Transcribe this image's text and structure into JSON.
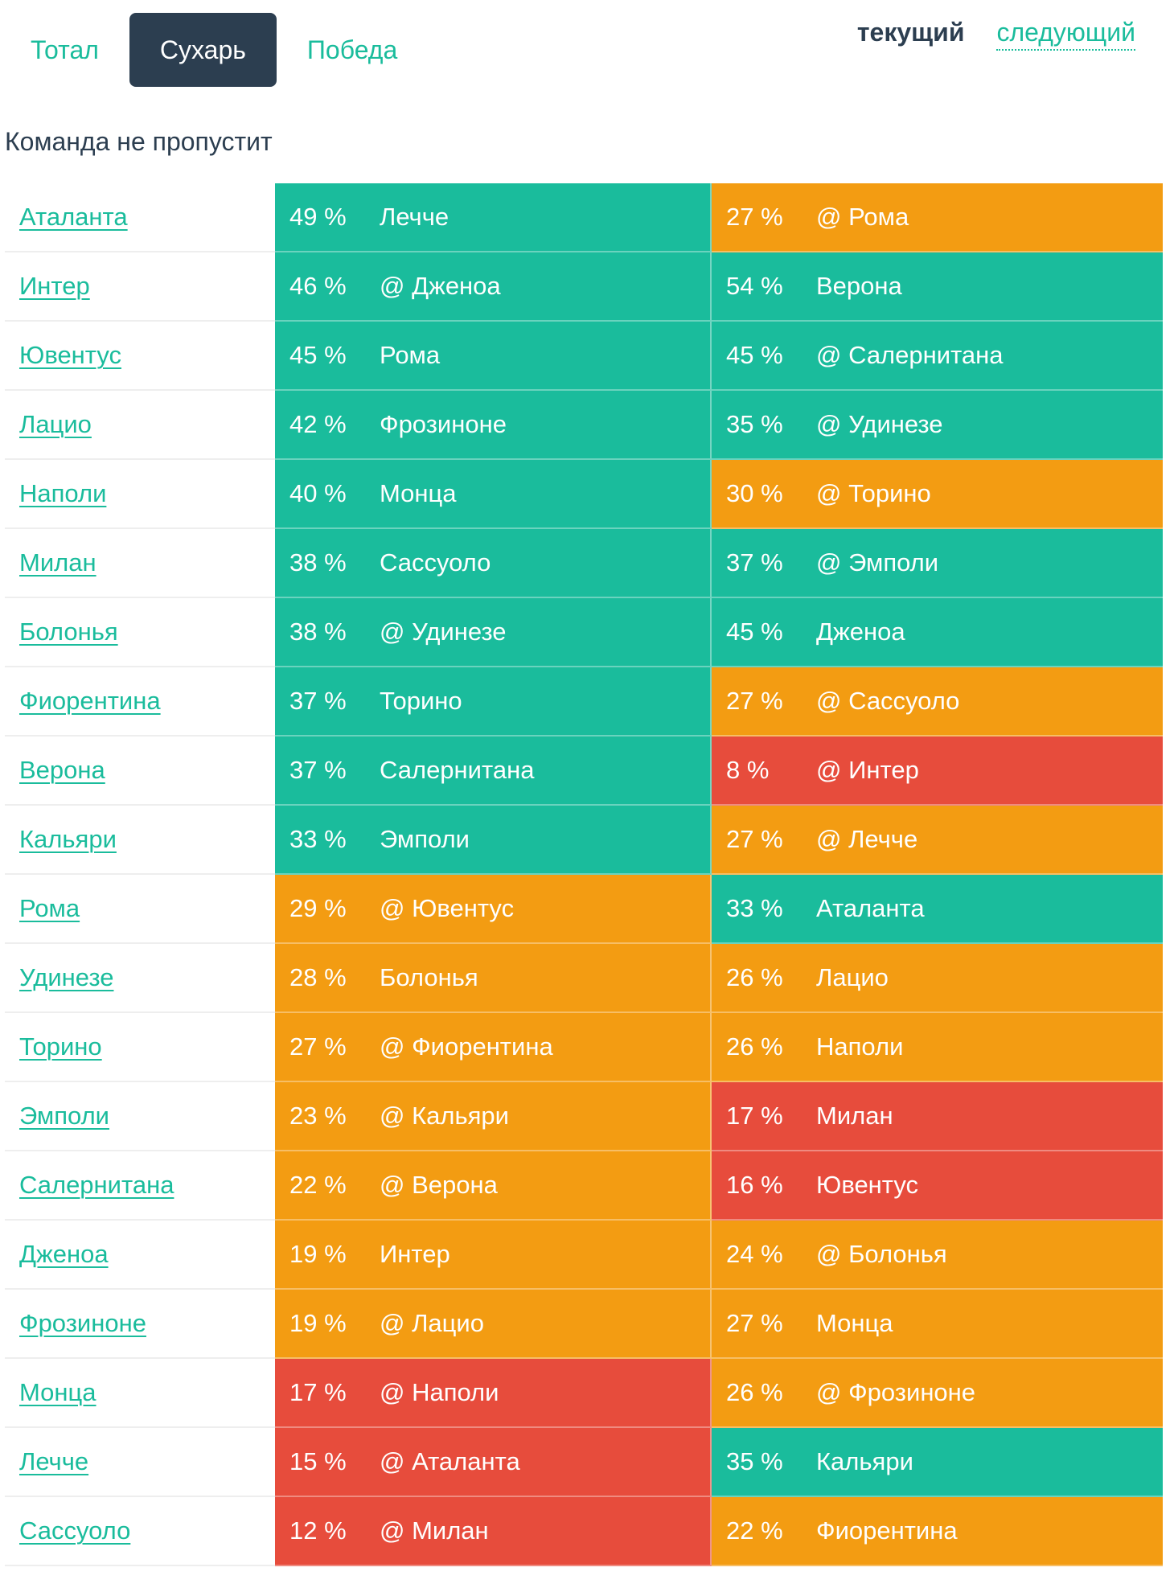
{
  "tabs": [
    {
      "label": "Тотал",
      "active": false
    },
    {
      "label": "Сухарь",
      "active": true
    },
    {
      "label": "Победа",
      "active": false
    }
  ],
  "round_switch": {
    "current": "текущий",
    "next": "следующий"
  },
  "subtitle": "Команда не пропустит",
  "colors": {
    "green": "#1abc9c",
    "orange": "#f39c12",
    "red": "#e74c3c",
    "dark": "#2c3e50"
  },
  "rows": [
    {
      "team": "Аталанта",
      "m1": {
        "pct": "49 %",
        "opp": "Лечче",
        "color": "green"
      },
      "m2": {
        "pct": "27 %",
        "opp": "@ Рома",
        "color": "orange"
      }
    },
    {
      "team": "Интер",
      "m1": {
        "pct": "46 %",
        "opp": "@ Дженоа",
        "color": "green"
      },
      "m2": {
        "pct": "54 %",
        "opp": "Верона",
        "color": "green"
      }
    },
    {
      "team": "Ювентус",
      "m1": {
        "pct": "45 %",
        "opp": "Рома",
        "color": "green"
      },
      "m2": {
        "pct": "45 %",
        "opp": "@ Салернитана",
        "color": "green"
      }
    },
    {
      "team": "Лацио",
      "m1": {
        "pct": "42 %",
        "opp": "Фрозиноне",
        "color": "green"
      },
      "m2": {
        "pct": "35 %",
        "opp": "@ Удинезе",
        "color": "green"
      }
    },
    {
      "team": "Наполи",
      "m1": {
        "pct": "40 %",
        "opp": "Монца",
        "color": "green"
      },
      "m2": {
        "pct": "30 %",
        "opp": "@ Торино",
        "color": "orange"
      }
    },
    {
      "team": "Милан",
      "m1": {
        "pct": "38 %",
        "opp": "Сассуоло",
        "color": "green"
      },
      "m2": {
        "pct": "37 %",
        "opp": "@ Эмполи",
        "color": "green"
      }
    },
    {
      "team": "Болонья",
      "m1": {
        "pct": "38 %",
        "opp": "@ Удинезе",
        "color": "green"
      },
      "m2": {
        "pct": "45 %",
        "opp": "Дженоа",
        "color": "green"
      }
    },
    {
      "team": "Фиорентина",
      "m1": {
        "pct": "37 %",
        "opp": "Торино",
        "color": "green"
      },
      "m2": {
        "pct": "27 %",
        "opp": "@ Сассуоло",
        "color": "orange"
      }
    },
    {
      "team": "Верона",
      "m1": {
        "pct": "37 %",
        "opp": "Салернитана",
        "color": "green"
      },
      "m2": {
        "pct": "8 %",
        "opp": "@ Интер",
        "color": "red"
      }
    },
    {
      "team": "Кальяри",
      "m1": {
        "pct": "33 %",
        "opp": "Эмполи",
        "color": "green"
      },
      "m2": {
        "pct": "27 %",
        "opp": "@ Лечче",
        "color": "orange"
      }
    },
    {
      "team": "Рома",
      "m1": {
        "pct": "29 %",
        "opp": "@ Ювентус",
        "color": "orange"
      },
      "m2": {
        "pct": "33 %",
        "opp": "Аталанта",
        "color": "green"
      }
    },
    {
      "team": "Удинезе",
      "m1": {
        "pct": "28 %",
        "opp": "Болонья",
        "color": "orange"
      },
      "m2": {
        "pct": "26 %",
        "opp": "Лацио",
        "color": "orange"
      }
    },
    {
      "team": "Торино",
      "m1": {
        "pct": "27 %",
        "opp": "@ Фиорентина",
        "color": "orange"
      },
      "m2": {
        "pct": "26 %",
        "opp": "Наполи",
        "color": "orange"
      }
    },
    {
      "team": "Эмполи",
      "m1": {
        "pct": "23 %",
        "opp": "@ Кальяри",
        "color": "orange"
      },
      "m2": {
        "pct": "17 %",
        "opp": "Милан",
        "color": "red"
      }
    },
    {
      "team": "Салернитана",
      "m1": {
        "pct": "22 %",
        "opp": "@ Верона",
        "color": "orange"
      },
      "m2": {
        "pct": "16 %",
        "opp": "Ювентус",
        "color": "red"
      }
    },
    {
      "team": "Дженоа",
      "m1": {
        "pct": "19 %",
        "opp": "Интер",
        "color": "orange"
      },
      "m2": {
        "pct": "24 %",
        "opp": "@ Болонья",
        "color": "orange"
      }
    },
    {
      "team": "Фрозиноне",
      "m1": {
        "pct": "19 %",
        "opp": "@ Лацио",
        "color": "orange"
      },
      "m2": {
        "pct": "27 %",
        "opp": "Монца",
        "color": "orange"
      }
    },
    {
      "team": "Монца",
      "m1": {
        "pct": "17 %",
        "opp": "@ Наполи",
        "color": "red"
      },
      "m2": {
        "pct": "26 %",
        "opp": "@ Фрозиноне",
        "color": "orange"
      }
    },
    {
      "team": "Лечче",
      "m1": {
        "pct": "15 %",
        "opp": "@ Аталанта",
        "color": "red"
      },
      "m2": {
        "pct": "35 %",
        "opp": "Кальяри",
        "color": "green"
      }
    },
    {
      "team": "Сассуоло",
      "m1": {
        "pct": "12 %",
        "opp": "@ Милан",
        "color": "red"
      },
      "m2": {
        "pct": "22 %",
        "opp": "Фиорентина",
        "color": "orange"
      }
    }
  ]
}
